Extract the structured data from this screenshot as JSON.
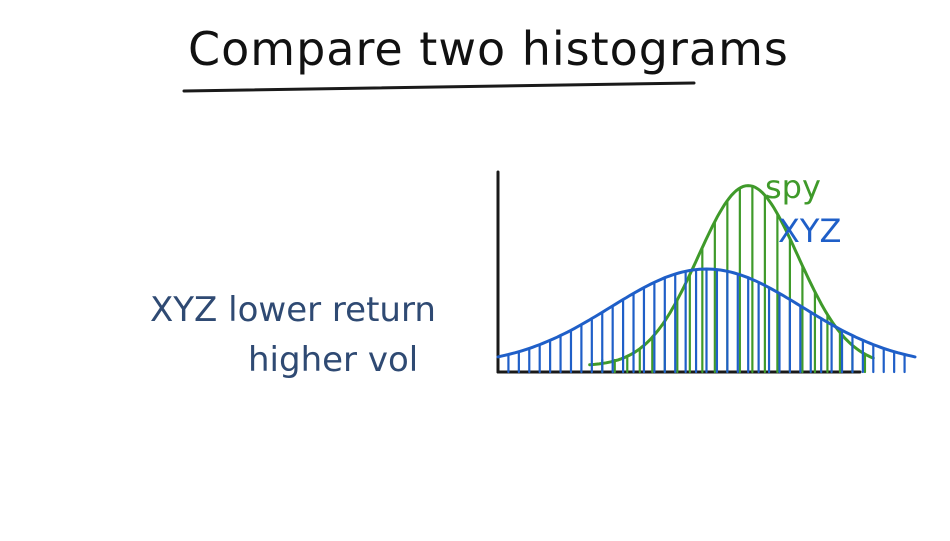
{
  "title": "Compare two histograms",
  "note": {
    "line1": "XYZ lower return",
    "line2": "higher vol"
  },
  "chart_data": {
    "type": "area",
    "series": [
      {
        "name": "spy",
        "color": "#3f9a2a",
        "mean": 0.6,
        "std": 0.12,
        "peak": 0.93
      },
      {
        "name": "XYZ",
        "color": "#1f5fc8",
        "mean": 0.5,
        "std": 0.23,
        "peak": 0.5
      }
    ],
    "xlabel": "",
    "ylabel": ""
  },
  "colors": {
    "axis": "#1a1a1a",
    "note": "#2f4a73"
  }
}
